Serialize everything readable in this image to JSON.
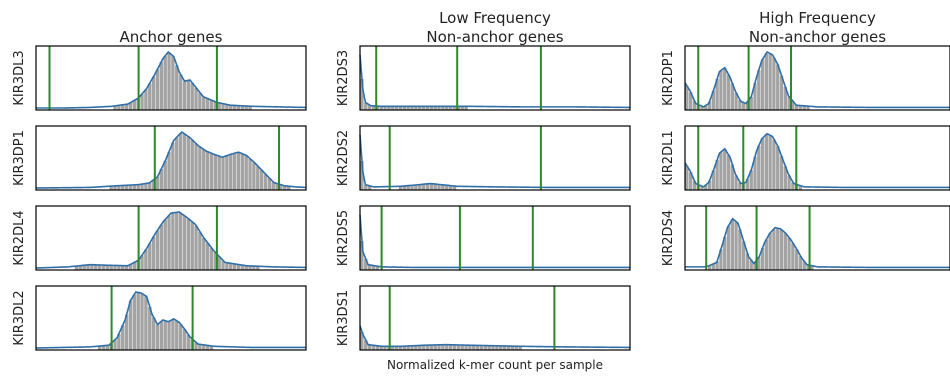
{
  "figure": {
    "xlabel": "Normalized k-mer count per sample"
  },
  "colors": {
    "kde": "#2f6fa8",
    "hist": "#a3a3a3",
    "vline": "#2b8a2b",
    "frame": "#000000"
  },
  "chart_data": [
    {
      "type": "area",
      "title": "Anchor genes",
      "x_range": [
        0,
        100
      ],
      "grid": false,
      "panels": [
        {
          "gene": "KIR3DL3",
          "thresholds": [
            5,
            38,
            67
          ],
          "kde": [
            [
              0,
              0
            ],
            [
              10,
              0.0
            ],
            [
              20,
              0.01
            ],
            [
              28,
              0.03
            ],
            [
              34,
              0.07
            ],
            [
              38,
              0.18
            ],
            [
              41,
              0.35
            ],
            [
              44,
              0.6
            ],
            [
              47,
              0.88
            ],
            [
              49,
              1.0
            ],
            [
              51,
              0.92
            ],
            [
              53,
              0.65
            ],
            [
              55,
              0.48
            ],
            [
              57,
              0.5
            ],
            [
              59,
              0.38
            ],
            [
              62,
              0.2
            ],
            [
              67,
              0.1
            ],
            [
              72,
              0.05
            ],
            [
              80,
              0.03
            ],
            [
              90,
              0.02
            ],
            [
              100,
              0.01
            ]
          ]
        },
        {
          "gene": "KIR3DP1",
          "thresholds": [
            44,
            90
          ],
          "kde": [
            [
              0,
              0
            ],
            [
              20,
              0.01
            ],
            [
              30,
              0.04
            ],
            [
              38,
              0.06
            ],
            [
              42,
              0.09
            ],
            [
              45,
              0.2
            ],
            [
              48,
              0.5
            ],
            [
              51,
              0.85
            ],
            [
              54,
              1.0
            ],
            [
              57,
              0.9
            ],
            [
              60,
              0.76
            ],
            [
              63,
              0.66
            ],
            [
              66,
              0.6
            ],
            [
              69,
              0.55
            ],
            [
              72,
              0.6
            ],
            [
              75,
              0.64
            ],
            [
              78,
              0.58
            ],
            [
              81,
              0.45
            ],
            [
              85,
              0.25
            ],
            [
              88,
              0.1
            ],
            [
              92,
              0.04
            ],
            [
              96,
              0.02
            ],
            [
              100,
              0.01
            ]
          ]
        },
        {
          "gene": "KIR2DL4",
          "thresholds": [
            38,
            67
          ],
          "kde": [
            [
              0,
              0
            ],
            [
              12,
              0.02
            ],
            [
              20,
              0.06
            ],
            [
              26,
              0.05
            ],
            [
              34,
              0.04
            ],
            [
              38,
              0.14
            ],
            [
              41,
              0.35
            ],
            [
              44,
              0.6
            ],
            [
              47,
              0.82
            ],
            [
              50,
              0.98
            ],
            [
              53,
              1.0
            ],
            [
              56,
              0.9
            ],
            [
              59,
              0.78
            ],
            [
              62,
              0.55
            ],
            [
              66,
              0.3
            ],
            [
              70,
              0.1
            ],
            [
              78,
              0.04
            ],
            [
              88,
              0.02
            ],
            [
              100,
              0.01
            ]
          ]
        },
        {
          "gene": "KIR3DL2",
          "thresholds": [
            28,
            58
          ],
          "kde": [
            [
              0,
              0
            ],
            [
              10,
              0.01
            ],
            [
              20,
              0.02
            ],
            [
              27,
              0.05
            ],
            [
              30,
              0.18
            ],
            [
              33,
              0.5
            ],
            [
              35,
              0.85
            ],
            [
              37,
              1.0
            ],
            [
              39,
              0.98
            ],
            [
              41,
              0.92
            ],
            [
              43,
              0.6
            ],
            [
              45,
              0.42
            ],
            [
              47,
              0.5
            ],
            [
              49,
              0.47
            ],
            [
              51,
              0.52
            ],
            [
              53,
              0.46
            ],
            [
              55,
              0.34
            ],
            [
              57,
              0.2
            ],
            [
              60,
              0.07
            ],
            [
              66,
              0.03
            ],
            [
              80,
              0.01
            ],
            [
              100,
              0.01
            ]
          ]
        }
      ]
    },
    {
      "type": "area",
      "title": "Low Frequency\nNon-anchor genes",
      "x_range": [
        0,
        100
      ],
      "grid": false,
      "panels": [
        {
          "gene": "KIR2DS3",
          "thresholds": [
            6,
            36,
            67
          ],
          "kde": [
            [
              0,
              0.95
            ],
            [
              1,
              0.35
            ],
            [
              2,
              0.1
            ],
            [
              4,
              0.04
            ],
            [
              8,
              0.03
            ],
            [
              20,
              0.03
            ],
            [
              40,
              0.03
            ],
            [
              60,
              0.02
            ],
            [
              80,
              0.02
            ],
            [
              100,
              0.01
            ]
          ]
        },
        {
          "gene": "KIR2DS2",
          "thresholds": [
            11,
            67
          ],
          "kde": [
            [
              0,
              0.95
            ],
            [
              1,
              0.3
            ],
            [
              2,
              0.06
            ],
            [
              5,
              0.02
            ],
            [
              15,
              0.03
            ],
            [
              22,
              0.06
            ],
            [
              26,
              0.08
            ],
            [
              30,
              0.06
            ],
            [
              36,
              0.03
            ],
            [
              50,
              0.02
            ],
            [
              70,
              0.01
            ],
            [
              100,
              0.01
            ]
          ]
        },
        {
          "gene": "KIR2DS5",
          "thresholds": [
            8,
            37,
            64
          ],
          "kde": [
            [
              0,
              0.95
            ],
            [
              1,
              0.3
            ],
            [
              3,
              0.06
            ],
            [
              8,
              0.02
            ],
            [
              20,
              0.01
            ],
            [
              50,
              0.01
            ],
            [
              100,
              0.01
            ]
          ]
        },
        {
          "gene": "KIR3DS1",
          "thresholds": [
            11,
            72
          ],
          "kde": [
            [
              0,
              0.4
            ],
            [
              1,
              0.25
            ],
            [
              3,
              0.06
            ],
            [
              8,
              0.03
            ],
            [
              15,
              0.03
            ],
            [
              24,
              0.05
            ],
            [
              32,
              0.06
            ],
            [
              40,
              0.05
            ],
            [
              50,
              0.04
            ],
            [
              60,
              0.03
            ],
            [
              75,
              0.02
            ],
            [
              100,
              0.01
            ]
          ]
        }
      ]
    },
    {
      "type": "area",
      "title": "High Frequency\nNon-anchor genes",
      "x_range": [
        0,
        100
      ],
      "grid": false,
      "panels": [
        {
          "gene": "KIR2DP1",
          "thresholds": [
            5,
            24,
            40
          ],
          "kde": [
            [
              0,
              0.45
            ],
            [
              2,
              0.3
            ],
            [
              4,
              0.08
            ],
            [
              7,
              0.02
            ],
            [
              9,
              0.08
            ],
            [
              11,
              0.35
            ],
            [
              13,
              0.65
            ],
            [
              15,
              0.72
            ],
            [
              17,
              0.55
            ],
            [
              19,
              0.3
            ],
            [
              21,
              0.12
            ],
            [
              23,
              0.08
            ],
            [
              25,
              0.2
            ],
            [
              27,
              0.55
            ],
            [
              29,
              0.85
            ],
            [
              31,
              1.0
            ],
            [
              33,
              0.95
            ],
            [
              35,
              0.78
            ],
            [
              37,
              0.5
            ],
            [
              39,
              0.22
            ],
            [
              42,
              0.05
            ],
            [
              50,
              0.02
            ],
            [
              70,
              0.01
            ],
            [
              100,
              0.01
            ]
          ]
        },
        {
          "gene": "KIR2DL1",
          "thresholds": [
            5,
            22,
            42
          ],
          "kde": [
            [
              0,
              0.45
            ],
            [
              2,
              0.3
            ],
            [
              4,
              0.08
            ],
            [
              7,
              0.02
            ],
            [
              9,
              0.1
            ],
            [
              11,
              0.35
            ],
            [
              13,
              0.62
            ],
            [
              15,
              0.7
            ],
            [
              17,
              0.55
            ],
            [
              19,
              0.25
            ],
            [
              21,
              0.08
            ],
            [
              23,
              0.1
            ],
            [
              25,
              0.32
            ],
            [
              27,
              0.66
            ],
            [
              29,
              0.88
            ],
            [
              31,
              0.97
            ],
            [
              33,
              0.92
            ],
            [
              35,
              0.75
            ],
            [
              37,
              0.5
            ],
            [
              39,
              0.25
            ],
            [
              41,
              0.08
            ],
            [
              45,
              0.02
            ],
            [
              60,
              0.01
            ],
            [
              100,
              0.01
            ]
          ]
        },
        {
          "gene": "KIR2DS4",
          "thresholds": [
            8,
            27,
            47
          ],
          "kde": [
            [
              0,
              0.02
            ],
            [
              8,
              0.02
            ],
            [
              12,
              0.1
            ],
            [
              14,
              0.4
            ],
            [
              16,
              0.72
            ],
            [
              18,
              0.88
            ],
            [
              20,
              0.8
            ],
            [
              22,
              0.5
            ],
            [
              24,
              0.2
            ],
            [
              26,
              0.08
            ],
            [
              28,
              0.2
            ],
            [
              30,
              0.45
            ],
            [
              32,
              0.62
            ],
            [
              34,
              0.72
            ],
            [
              36,
              0.7
            ],
            [
              38,
              0.62
            ],
            [
              40,
              0.5
            ],
            [
              42,
              0.35
            ],
            [
              44,
              0.18
            ],
            [
              46,
              0.06
            ],
            [
              50,
              0.02
            ],
            [
              70,
              0.01
            ],
            [
              100,
              0.01
            ]
          ]
        }
      ]
    }
  ]
}
